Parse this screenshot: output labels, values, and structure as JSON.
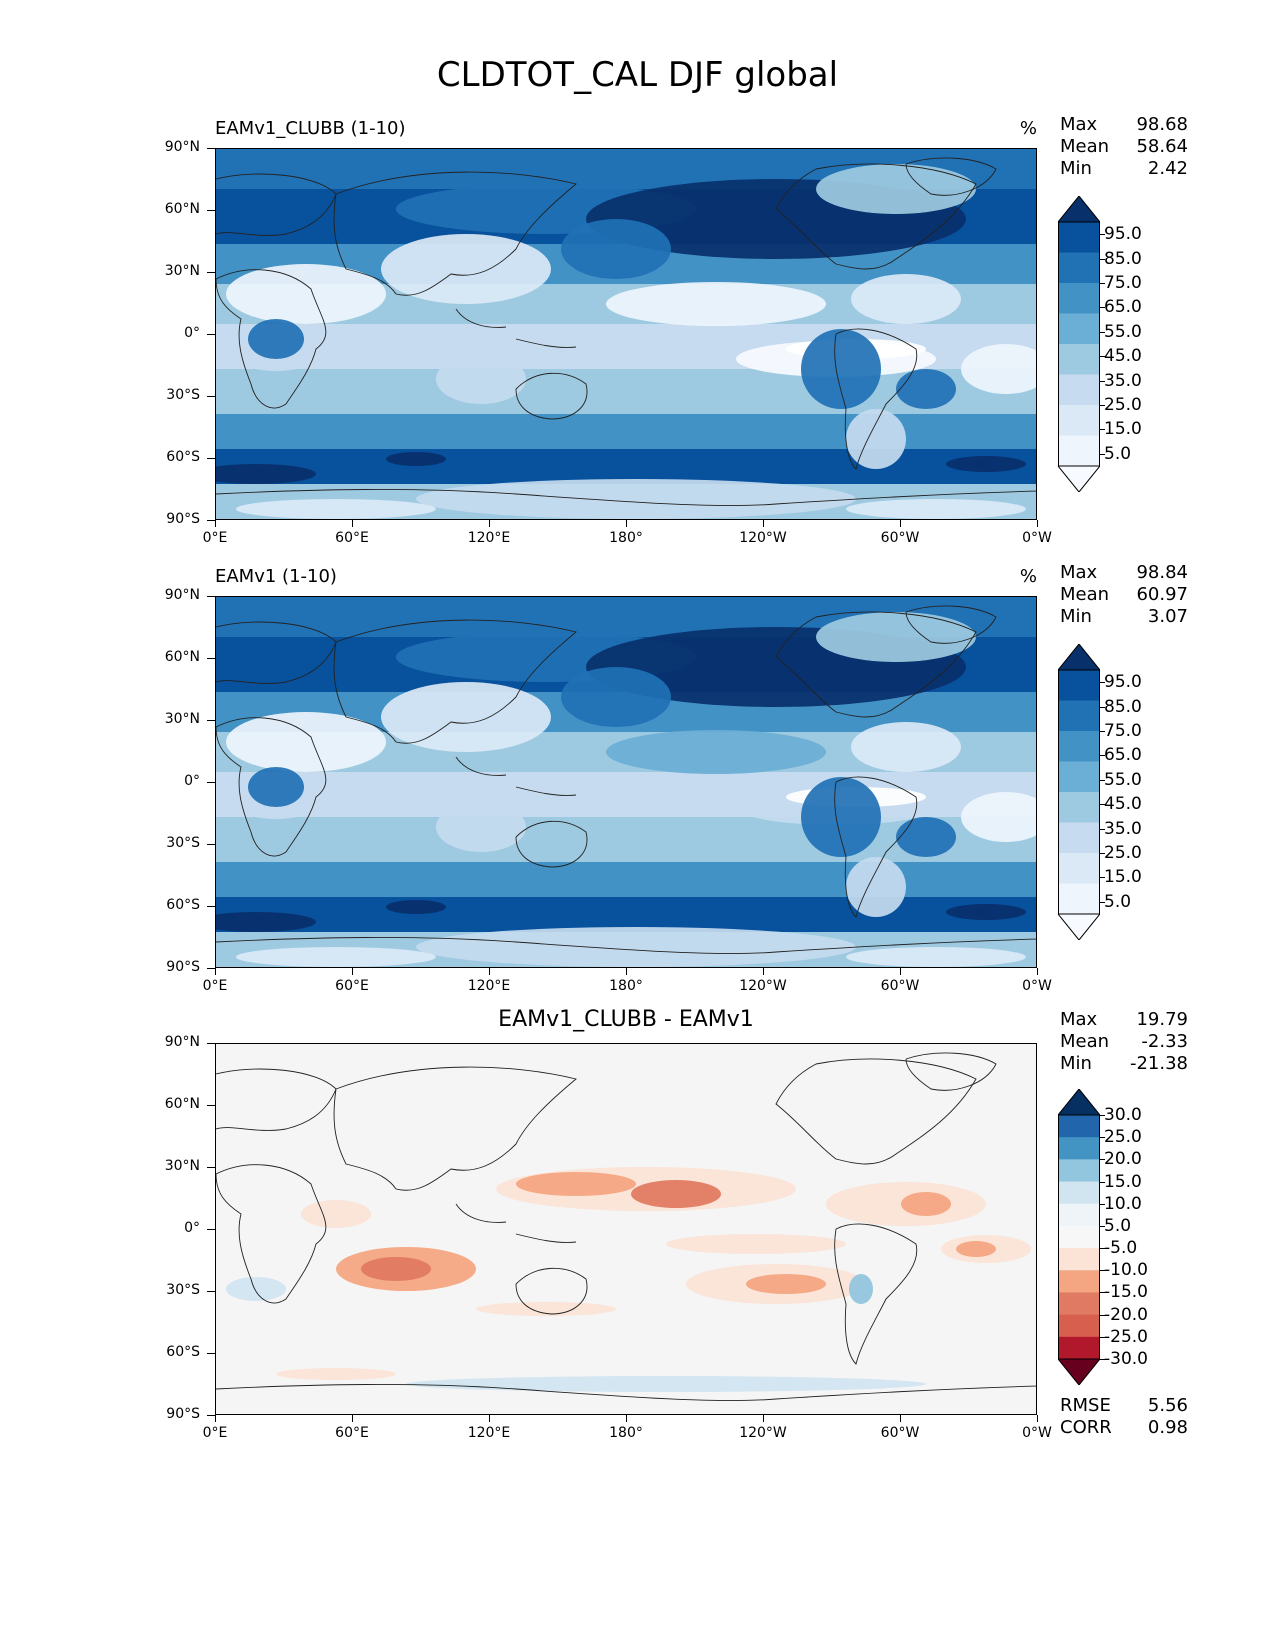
{
  "title": "CLDTOT_CAL DJF global",
  "axes": {
    "lat_labels": [
      "90°N",
      "60°N",
      "30°N",
      "0°",
      "30°S",
      "60°S",
      "90°S"
    ],
    "lon_labels": [
      "0°E",
      "60°E",
      "120°E",
      "180°",
      "120°W",
      "60°W",
      "0°W"
    ]
  },
  "panels": [
    {
      "title": "EAMv1_CLUBB (1-10)",
      "units": "%",
      "stats": [
        {
          "label": "Max",
          "value": "98.68"
        },
        {
          "label": "Mean",
          "value": "58.64"
        },
        {
          "label": "Min",
          "value": "2.42"
        }
      ],
      "colorbar": {
        "labels": [
          "95.0",
          "85.0",
          "75.0",
          "65.0",
          "55.0",
          "45.0",
          "35.0",
          "25.0",
          "15.0",
          "5.0"
        ],
        "colors": [
          "#08306b",
          "#08519c",
          "#2171b5",
          "#4292c6",
          "#6baed6",
          "#9ecae1",
          "#c6dbef",
          "#dbe9f6",
          "#eef5fc",
          "#f7fbff"
        ]
      }
    },
    {
      "title": "EAMv1 (1-10)",
      "units": "%",
      "stats": [
        {
          "label": "Max",
          "value": "98.84"
        },
        {
          "label": "Mean",
          "value": "60.97"
        },
        {
          "label": "Min",
          "value": "3.07"
        }
      ],
      "colorbar": {
        "labels": [
          "95.0",
          "85.0",
          "75.0",
          "65.0",
          "55.0",
          "45.0",
          "35.0",
          "25.0",
          "15.0",
          "5.0"
        ],
        "colors": [
          "#08306b",
          "#08519c",
          "#2171b5",
          "#4292c6",
          "#6baed6",
          "#9ecae1",
          "#c6dbef",
          "#dbe9f6",
          "#eef5fc",
          "#f7fbff"
        ]
      }
    },
    {
      "title": "EAMv1_CLUBB - EAMv1",
      "units": "",
      "stats": [
        {
          "label": "Max",
          "value": "19.79"
        },
        {
          "label": "Mean",
          "value": "-2.33"
        },
        {
          "label": "Min",
          "value": "-21.38"
        }
      ],
      "colorbar": {
        "labels": [
          "30.0",
          "25.0",
          "20.0",
          "15.0",
          "10.0",
          "5.0",
          "-5.0",
          "-10.0",
          "-15.0",
          "-20.0",
          "-25.0",
          "-30.0"
        ],
        "colors": [
          "#053061",
          "#2166ac",
          "#4393c3",
          "#92c5de",
          "#d1e5f0",
          "#eef4f8",
          "#f7f7f7",
          "#fbe3d6",
          "#f4a582",
          "#e07a62",
          "#d6604d",
          "#b2182b",
          "#67001f"
        ]
      },
      "metrics": [
        {
          "label": "RMSE",
          "value": "5.56"
        },
        {
          "label": "CORR",
          "value": "0.98"
        }
      ]
    }
  ]
}
